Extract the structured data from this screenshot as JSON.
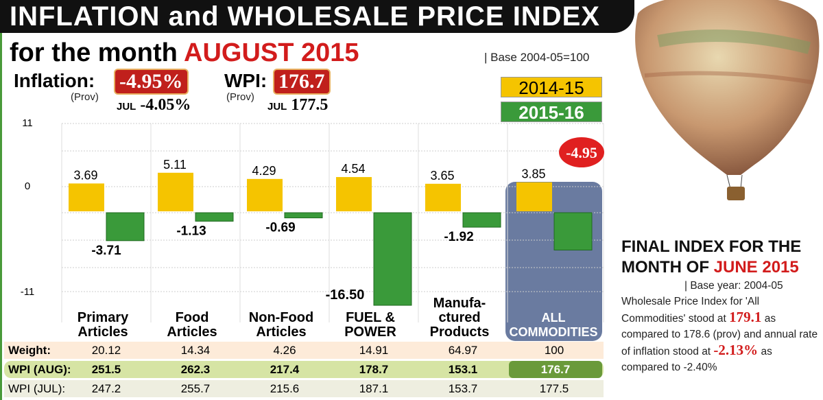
{
  "title": "INFLATION and WHOLESALE PRICE INDEX",
  "subtitle_prefix": "for the month",
  "subtitle_month": "AUGUST 2015",
  "base": "| Base 2004-05=100",
  "inflation": {
    "label": "Inflation:",
    "value": "-4.95%",
    "prov": "(Prov)",
    "jul_label": "JUL",
    "jul_value": "-4.05%"
  },
  "wpi": {
    "label": "WPI:",
    "value": "176.7",
    "prov": "(Prov)",
    "jul_label": "JUL",
    "jul_value": "177.5"
  },
  "chart_data": {
    "type": "bar",
    "categories": [
      "Primary Articles",
      "Food Articles",
      "Non-Food Articles",
      "FUEL & POWER",
      "Manufa-ctured Products",
      "ALL COMMODITIES"
    ],
    "series": [
      {
        "name": "2014-15",
        "color": "#f5c400",
        "values": [
          3.69,
          5.11,
          4.29,
          4.54,
          3.65,
          3.85
        ],
        "labels": [
          "3.69",
          "5.11",
          "4.29",
          "4.54",
          "3.65",
          "3.85"
        ]
      },
      {
        "name": "2015-16",
        "color": "#3a9a3a",
        "values": [
          -3.71,
          -1.13,
          -0.69,
          -16.5,
          -1.92,
          -4.95
        ],
        "labels": [
          "-3.71",
          "-1.13",
          "-0.69",
          "-16.50",
          "-1.92",
          "-4.95"
        ]
      }
    ],
    "yticks": [
      "11",
      "0",
      "-11"
    ],
    "ylim": [
      -11,
      11
    ],
    "legend": "top-right"
  },
  "table": {
    "rows": [
      {
        "label": "Weight:",
        "values": [
          "20.12",
          "14.34",
          "4.26",
          "14.91",
          "64.97",
          "100"
        ]
      },
      {
        "label": "WPI (AUG):",
        "values": [
          "251.5",
          "262.3",
          "217.4",
          "178.7",
          "153.1",
          "176.7"
        ]
      },
      {
        "label": "WPI (JUL):",
        "values": [
          "247.2",
          "255.7",
          "215.6",
          "187.1",
          "153.7",
          "177.5"
        ]
      }
    ]
  },
  "final": {
    "title1": "FINAL INDEX FOR THE",
    "title2": "MONTH OF ",
    "title2_red": "JUNE 2015",
    "base": "|  Base year: 2004-05",
    "t1": "Wholesale Price Index for 'All Commodities' stood at ",
    "v1": "179.1",
    "t2": " as compared to 178.6 (prov) and annual rate of inflation stood at ",
    "v2": "-2.13%",
    "t3": " as compared to -2.40%"
  }
}
